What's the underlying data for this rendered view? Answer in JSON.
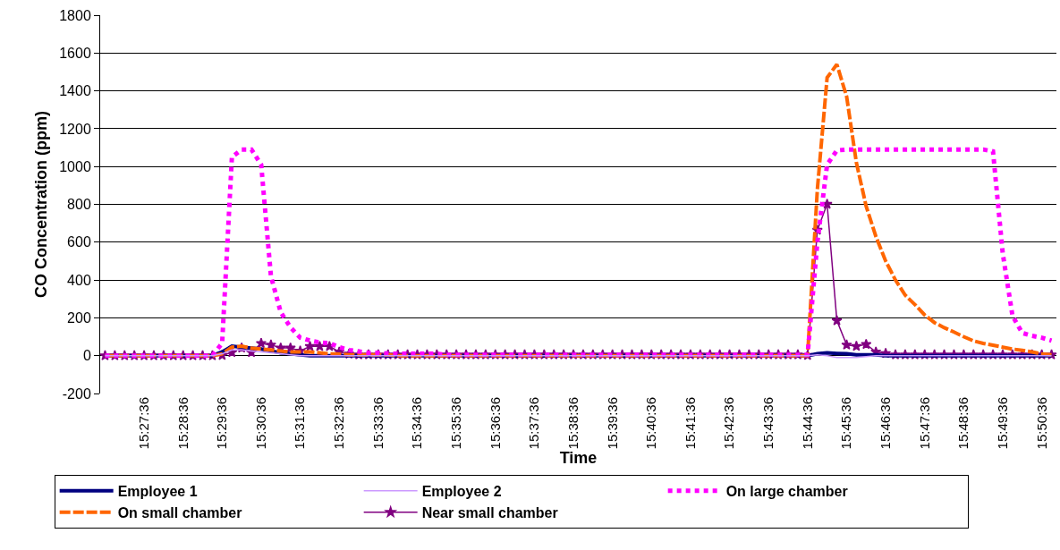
{
  "chart_data": {
    "type": "line",
    "xlabel": "Time",
    "ylabel": "CO Concentration (ppm)",
    "categories": [
      null,
      null,
      null,
      null,
      "15:27:36",
      null,
      null,
      null,
      "15:28:36",
      null,
      null,
      null,
      "15:29:36",
      null,
      null,
      null,
      "15:30:36",
      null,
      null,
      null,
      "15:31:36",
      null,
      null,
      null,
      "15:32:36",
      null,
      null,
      null,
      "15:33:36",
      null,
      null,
      null,
      "15:34:36",
      null,
      null,
      null,
      "15:35:36",
      null,
      null,
      null,
      "15:36:36",
      null,
      null,
      null,
      "15:37:36",
      null,
      null,
      null,
      "15:38:36",
      null,
      null,
      null,
      "15:39:36",
      null,
      null,
      null,
      "15:40:36",
      null,
      null,
      null,
      "15:41:36",
      null,
      null,
      null,
      "15:42:36",
      null,
      null,
      null,
      "15:43:36",
      null,
      null,
      null,
      "15:44:36",
      null,
      null,
      null,
      "15:45:36",
      null,
      null,
      null,
      "15:46:36",
      null,
      null,
      null,
      "15:47:36",
      null,
      null,
      null,
      "15:48:36",
      null,
      null,
      null,
      "15:49:36",
      null,
      null,
      null,
      "15:50:36",
      null
    ],
    "series": [
      {
        "name": "Employee 1",
        "color": "#000080",
        "line_style": "solid",
        "marker": "none",
        "values": [
          0,
          0,
          0,
          0,
          0,
          0,
          0,
          0,
          0,
          0,
          0,
          0,
          20,
          50,
          45,
          40,
          35,
          25,
          15,
          10,
          5,
          0,
          0,
          0,
          0,
          0,
          0,
          0,
          0,
          0,
          0,
          0,
          0,
          0,
          0,
          0,
          0,
          0,
          0,
          0,
          0,
          0,
          0,
          0,
          0,
          0,
          0,
          0,
          0,
          0,
          0,
          0,
          0,
          0,
          0,
          0,
          0,
          0,
          0,
          0,
          0,
          0,
          0,
          0,
          0,
          0,
          0,
          0,
          0,
          0,
          0,
          0,
          0,
          10,
          15,
          12,
          10,
          5,
          5,
          5,
          0,
          0,
          0,
          0,
          0,
          0,
          0,
          0,
          0,
          0,
          0,
          0,
          0,
          0,
          0,
          0,
          0,
          0
        ]
      },
      {
        "name": "Employee 2",
        "color": "#cc99ff",
        "line_style": "solid",
        "marker": "none",
        "values": [
          0,
          0,
          0,
          0,
          0,
          0,
          0,
          0,
          0,
          0,
          0,
          0,
          10,
          30,
          30,
          25,
          20,
          15,
          10,
          5,
          0,
          0,
          0,
          0,
          0,
          0,
          0,
          0,
          0,
          0,
          0,
          0,
          0,
          0,
          0,
          0,
          0,
          0,
          0,
          0,
          0,
          0,
          0,
          0,
          0,
          0,
          0,
          0,
          0,
          0,
          0,
          0,
          0,
          0,
          0,
          0,
          0,
          0,
          0,
          0,
          0,
          0,
          0,
          0,
          0,
          0,
          0,
          0,
          0,
          0,
          0,
          0,
          0,
          5,
          0,
          -10,
          -10,
          -10,
          -5,
          0,
          0,
          0,
          0,
          0,
          0,
          0,
          0,
          0,
          0,
          0,
          0,
          0,
          0,
          0,
          0,
          0,
          0,
          0
        ]
      },
      {
        "name": "On large chamber",
        "color": "#ff00ff",
        "line_style": "dotted",
        "marker": "none",
        "values": [
          0,
          0,
          0,
          0,
          0,
          0,
          0,
          0,
          0,
          0,
          0,
          0,
          66,
          1050,
          1090,
          1090,
          1010,
          420,
          230,
          150,
          95,
          80,
          70,
          66,
          45,
          30,
          22,
          15,
          15,
          12,
          10,
          10,
          10,
          10,
          10,
          5,
          5,
          5,
          5,
          5,
          5,
          5,
          5,
          5,
          5,
          5,
          5,
          5,
          5,
          5,
          5,
          5,
          5,
          5,
          5,
          5,
          5,
          5,
          5,
          5,
          5,
          5,
          5,
          5,
          5,
          5,
          5,
          5,
          5,
          5,
          5,
          5,
          5,
          600,
          1010,
          1085,
          1090,
          1090,
          1090,
          1090,
          1090,
          1090,
          1090,
          1090,
          1090,
          1090,
          1090,
          1090,
          1090,
          1090,
          1090,
          1080,
          540,
          210,
          120,
          105,
          95,
          80
        ]
      },
      {
        "name": "On small chamber",
        "color": "#ff6600",
        "line_style": "dashed",
        "marker": "none",
        "values": [
          0,
          0,
          0,
          0,
          0,
          0,
          0,
          0,
          0,
          0,
          0,
          0,
          10,
          45,
          50,
          40,
          35,
          30,
          25,
          20,
          20,
          20,
          15,
          10,
          8,
          5,
          5,
          5,
          5,
          5,
          0,
          0,
          0,
          0,
          0,
          0,
          0,
          0,
          0,
          0,
          0,
          0,
          0,
          0,
          0,
          0,
          0,
          0,
          0,
          0,
          0,
          0,
          0,
          0,
          0,
          0,
          0,
          0,
          0,
          0,
          0,
          0,
          0,
          0,
          0,
          0,
          0,
          0,
          0,
          0,
          0,
          0,
          0,
          880,
          1470,
          1540,
          1370,
          1020,
          790,
          630,
          500,
          400,
          320,
          270,
          215,
          175,
          148,
          125,
          100,
          78,
          65,
          55,
          45,
          35,
          28,
          20,
          9,
          5
        ]
      },
      {
        "name": "Near small chamber",
        "color": "#800080",
        "line_style": "solid",
        "marker": "star",
        "values": [
          0,
          0,
          0,
          0,
          0,
          0,
          0,
          0,
          0,
          0,
          0,
          0,
          2,
          17,
          41,
          17,
          65,
          57,
          41,
          41,
          25,
          49,
          49,
          49,
          20,
          9,
          5,
          5,
          5,
          5,
          5,
          5,
          5,
          5,
          5,
          5,
          5,
          5,
          5,
          5,
          5,
          5,
          5,
          5,
          5,
          5,
          5,
          5,
          5,
          5,
          5,
          5,
          5,
          5,
          5,
          5,
          5,
          5,
          5,
          5,
          5,
          5,
          5,
          5,
          5,
          5,
          5,
          5,
          5,
          5,
          5,
          5,
          2,
          664,
          801,
          185,
          57,
          50,
          60,
          20,
          12,
          5,
          5,
          5,
          5,
          5,
          5,
          5,
          5,
          5,
          5,
          5,
          5,
          5,
          5,
          5,
          5,
          5
        ]
      }
    ],
    "ylim": [
      -200,
      1800
    ],
    "yticks": [
      -200,
      0,
      200,
      400,
      600,
      800,
      1000,
      1200,
      1400,
      1600,
      1800
    ],
    "grid": "y",
    "legend": "bottom"
  }
}
